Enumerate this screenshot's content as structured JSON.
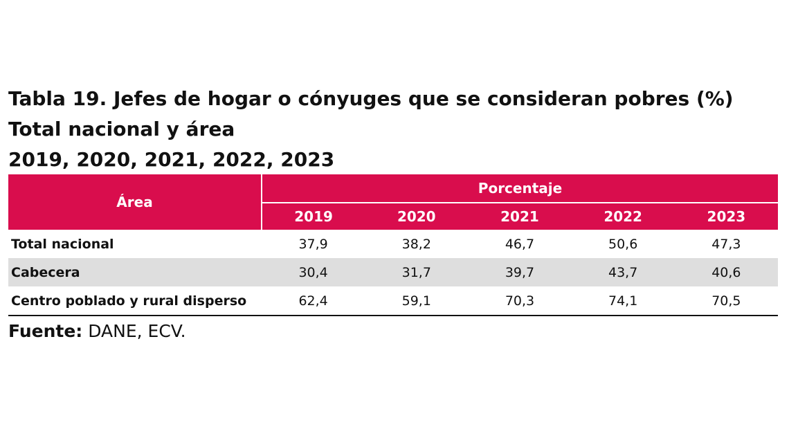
{
  "title": {
    "line1": "Tabla 19. Jefes de hogar o cónyuges que se consideran pobres (%)",
    "line2": "Total nacional y área",
    "line3": "2019,  2020,  2021,  2022,  2023"
  },
  "table": {
    "area_header": "Área",
    "group_header": "Porcentaje",
    "years": [
      "2019",
      "2020",
      "2021",
      "2022",
      "2023"
    ],
    "rows": [
      {
        "area": "Total nacional",
        "values": [
          "37,9",
          "38,2",
          "46,7",
          "50,6",
          "47,3"
        ]
      },
      {
        "area": "Cabecera",
        "values": [
          "30,4",
          "31,7",
          "39,7",
          "43,7",
          "40,6"
        ]
      },
      {
        "area": "Centro poblado y rural disperso",
        "values": [
          "62,4",
          "59,1",
          "70,3",
          "74,1",
          "70,5"
        ]
      }
    ],
    "header_color": "#d90d4d",
    "shaded_row_color": "#dedede"
  },
  "source": {
    "label": "Fuente:",
    "text": " DANE, ECV."
  }
}
